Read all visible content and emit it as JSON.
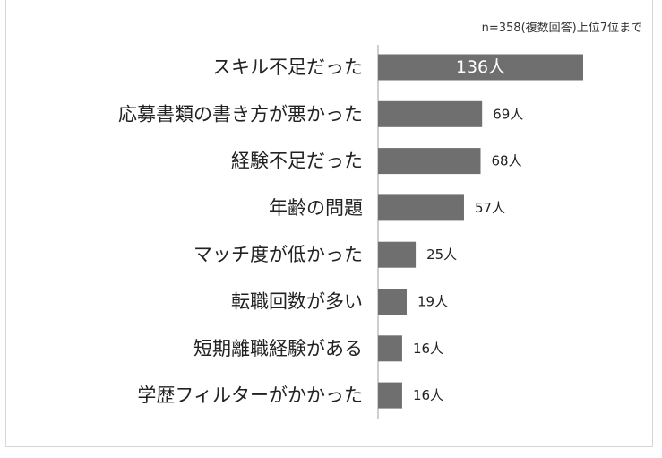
{
  "note": "n=358(複数回答)上位7位まで",
  "colors": {
    "bar": "#6f6f6f",
    "axis": "#bfbfbf",
    "text": "#222222",
    "inside_text": "#ffffff"
  },
  "chart_data": {
    "type": "bar",
    "orientation": "horizontal",
    "categories": [
      "スキル不足だった",
      "応募書類の書き方が悪かった",
      "経験不足だった",
      "年齢の問題",
      "マッチ度が低かった",
      "転職回数が多い",
      "短期離職経験がある",
      "学歴フィルターがかかった"
    ],
    "values": [
      136,
      69,
      68,
      57,
      25,
      19,
      16,
      16
    ],
    "value_labels": [
      "136人",
      "69人",
      "68人",
      "57人",
      "25人",
      "19人",
      "16人",
      "16人"
    ],
    "unit": "人",
    "xlim": [
      0,
      136
    ],
    "grid": false,
    "legend": "none"
  }
}
